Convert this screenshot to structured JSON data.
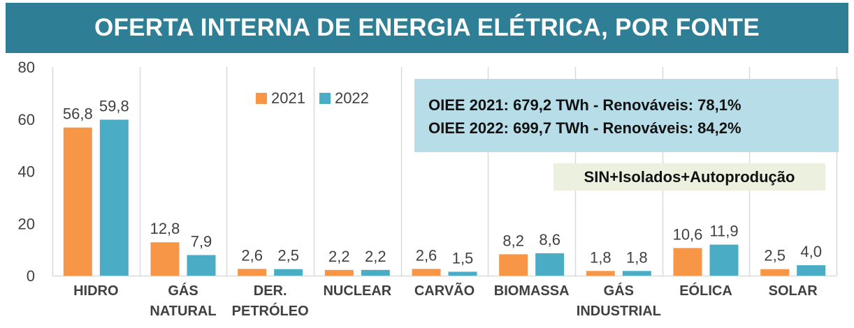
{
  "page": {
    "title": "OFERTA INTERNA DE ENERGIA ELÉTRICA, POR FONTE",
    "colors": {
      "title_bg": "#2E7E96",
      "series_2021": "#F79646",
      "series_2022": "#4BACC6",
      "info_bg": "#B7DEE8",
      "scope_bg": "#EBF1DE",
      "grid": "#D9D9D9",
      "text": "#404040"
    }
  },
  "info": {
    "line1": "OIEE  2021: 679,2 TWh  - Renováveis:  78,1%",
    "line2": "OIEE  2022: 699,7 TWh  - Renováveis:  84,2%"
  },
  "scope": {
    "label": "SIN+Isolados+Autoprodução"
  },
  "legend": {
    "items": [
      "2021",
      "2022"
    ]
  },
  "chart_data": {
    "type": "bar",
    "title": "OFERTA INTERNA DE ENERGIA ELÉTRICA, POR FONTE",
    "xlabel": "",
    "ylabel": "",
    "ylim": [
      0,
      80
    ],
    "yticks": [
      "0",
      "20",
      "40",
      "60",
      "80"
    ],
    "grid": "vertical",
    "legend_position": "top-center",
    "categories": [
      [
        "HIDRO"
      ],
      [
        "GÁS",
        "NATURAL"
      ],
      [
        "DER.",
        "PETRÓLEO"
      ],
      [
        "NUCLEAR"
      ],
      [
        "CARVÃO"
      ],
      [
        "BIOMASSA"
      ],
      [
        "GÁS",
        "INDUSTRIAL"
      ],
      [
        "EÓLICA"
      ],
      [
        "SOLAR"
      ]
    ],
    "series": [
      {
        "name": "2021",
        "color": "#F79646",
        "values": [
          56.8,
          12.8,
          2.6,
          2.2,
          2.6,
          8.2,
          1.8,
          10.6,
          2.5
        ],
        "labels": [
          "56,8",
          "12,8",
          "2,6",
          "2,2",
          "2,6",
          "8,2",
          "1,8",
          "10,6",
          "2,5"
        ]
      },
      {
        "name": "2022",
        "color": "#4BACC6",
        "values": [
          59.8,
          7.9,
          2.5,
          2.2,
          1.5,
          8.6,
          1.8,
          11.9,
          4.0
        ],
        "labels": [
          "59,8",
          "7,9",
          "2,5",
          "2,2",
          "1,5",
          "8,6",
          "1,8",
          "11,9",
          "4,0"
        ]
      }
    ]
  }
}
